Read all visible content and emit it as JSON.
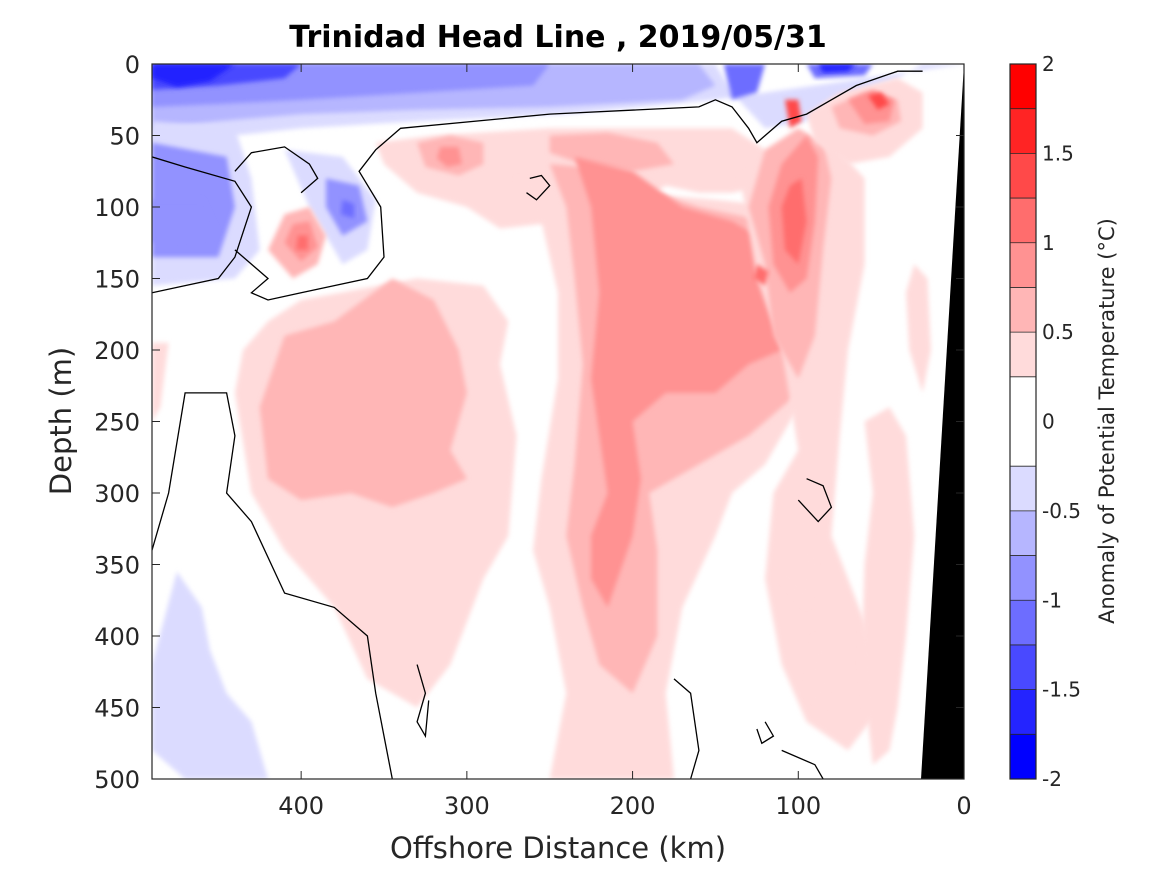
{
  "chart_data": {
    "type": "contour",
    "title": "Trinidad Head Line , 2019/05/31",
    "xlabel": "Offshore Distance (km)",
    "ylabel": "Depth (m)",
    "xlim": [
      490,
      0
    ],
    "ylim": [
      0,
      500
    ],
    "x_axis_reversed": true,
    "y_axis_reversed": true,
    "x_ticks": [
      400,
      300,
      200,
      100,
      0
    ],
    "y_ticks": [
      0,
      50,
      100,
      150,
      200,
      250,
      300,
      350,
      400,
      450,
      500
    ],
    "colorbar": {
      "label": "Anomaly of Potential Temperature (°C)",
      "range": [
        -2,
        2
      ],
      "ticks": [
        2,
        1.5,
        1,
        0.5,
        0,
        -0.5,
        -1,
        -1.5,
        -2
      ],
      "levels": [
        {
          "min": -2.0,
          "max": -1.75,
          "color": "#0000ff"
        },
        {
          "min": -1.75,
          "max": -1.5,
          "color": "#2424ff"
        },
        {
          "min": -1.5,
          "max": -1.25,
          "color": "#4949ff"
        },
        {
          "min": -1.25,
          "max": -1.0,
          "color": "#6d6dff"
        },
        {
          "min": -1.0,
          "max": -0.75,
          "color": "#9292ff"
        },
        {
          "min": -0.75,
          "max": -0.5,
          "color": "#b6b6ff"
        },
        {
          "min": -0.5,
          "max": -0.25,
          "color": "#dbdbff"
        },
        {
          "min": -0.25,
          "max": 0.25,
          "color": "#ffffff"
        },
        {
          "min": 0.25,
          "max": 0.5,
          "color": "#ffdbdb"
        },
        {
          "min": 0.5,
          "max": 0.75,
          "color": "#ffb6b6"
        },
        {
          "min": 0.75,
          "max": 1.0,
          "color": "#ff9292"
        },
        {
          "min": 1.0,
          "max": 1.25,
          "color": "#ff6d6d"
        },
        {
          "min": 1.25,
          "max": 1.5,
          "color": "#ff4949"
        },
        {
          "min": 1.5,
          "max": 1.75,
          "color": "#ff2424"
        },
        {
          "min": 1.75,
          "max": 2.0,
          "color": "#ff0000"
        }
      ]
    },
    "zero_contour": "black line",
    "bathymetry_mask": "#000000",
    "regions": [
      {
        "kind": "cold",
        "level": -1.5,
        "where": "surface, 440-490 km and 70-140 km, 0-30 m"
      },
      {
        "kind": "cold",
        "level": -0.75,
        "where": "surface layer 0-40 m, 150-490 km"
      },
      {
        "kind": "cold",
        "level": -0.75,
        "where": "subsurface 70-140 m, 430-490 km"
      },
      {
        "kind": "cold",
        "level": -1.0,
        "where": "eddy ~370 km, 100 m"
      },
      {
        "kind": "cold",
        "level": -0.25,
        "where": "deep 350-500 m, 420-490 km"
      },
      {
        "kind": "warm",
        "level": 1.1,
        "where": "core ~400 km, 125 m"
      },
      {
        "kind": "warm",
        "level": 0.6,
        "where": "broad 170-320 m, 290-420 km"
      },
      {
        "kind": "warm",
        "level": 0.8,
        "where": "tongue 60-380 m, 170-260 km"
      },
      {
        "kind": "warm",
        "level": 1.25,
        "where": "core 90-150 m, 95-130 km"
      },
      {
        "kind": "warm",
        "level": 0.3,
        "where": "deep tongue 380-500 m, 180-230 km"
      }
    ]
  }
}
